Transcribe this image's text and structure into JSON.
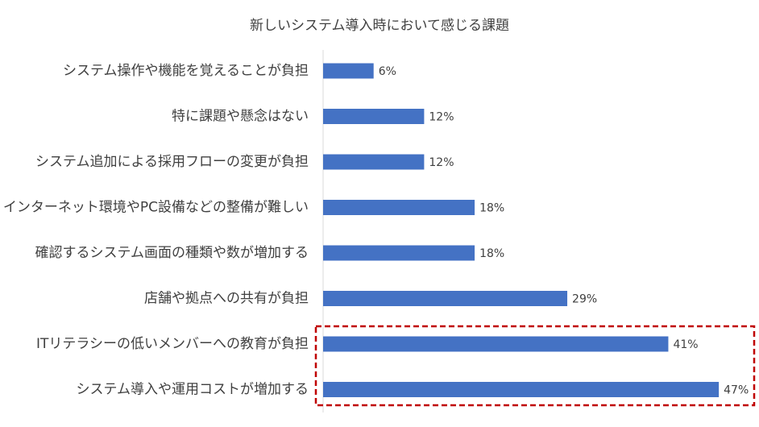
{
  "chart_data": {
    "type": "bar",
    "orientation": "horizontal",
    "title": "新しいシステム導入時において感じる課題",
    "categories": [
      "システム操作や機能を覚えることが負担",
      "特に課題や懸念はない",
      "システム追加による採用フローの変更が負担",
      "インターネット環境やPC設備などの整備が難しい",
      "確認するシステム画面の種類や数が増加する",
      "店舗や拠点への共有が負担",
      "ITリテラシーの低いメンバーへの教育が負担",
      "システム導入や運用コストが増加する"
    ],
    "values": [
      6,
      12,
      12,
      18,
      18,
      29,
      41,
      47
    ],
    "value_labels": [
      "6%",
      "12%",
      "12%",
      "18%",
      "18%",
      "29%",
      "41%",
      "47%"
    ],
    "unit": "%",
    "xlim": [
      0,
      50
    ],
    "grid": false,
    "legend": "none",
    "highlighted_categories": [
      "ITリテラシーの低いメンバーへの教育が負担",
      "システム導入や運用コストが増加する"
    ]
  },
  "colors": {
    "bar": "#4472C4",
    "axis": "#d9d9d9",
    "text": "#404040",
    "highlight_border": "#C00000"
  }
}
